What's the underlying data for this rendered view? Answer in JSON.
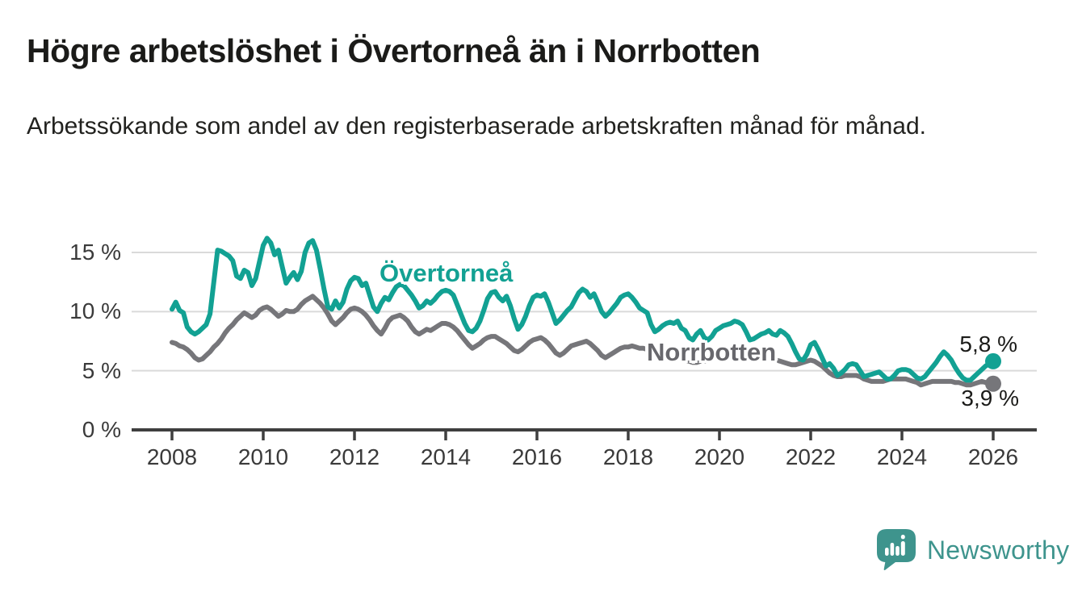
{
  "title": "Högre arbetslöshet i Övertorneå än i Norrbotten",
  "subtitle": "Arbetssökande som andel av den registerbaserade arbetskraften månad för månad.",
  "chart_data": {
    "type": "line",
    "x_start_year": 2008,
    "x_end_year": 2026,
    "points_per_year": 12,
    "x_tick_labels": [
      "2008",
      "2010",
      "2012",
      "2014",
      "2016",
      "2018",
      "2020",
      "2022",
      "2024",
      "2026"
    ],
    "y_ticks": [
      0,
      5,
      10,
      15
    ],
    "y_tick_labels": [
      "0 %",
      "5 %",
      "10 %",
      "15 %"
    ],
    "ylim": [
      0,
      16.5
    ],
    "grid": "horizontal",
    "legend_position": "inline-labels",
    "colors": {
      "grid": "#dadada",
      "axis": "#3f3f3f"
    },
    "series": [
      {
        "id": "overtornea",
        "name": "Övertorneå",
        "color": "#12a193",
        "end_label": "5,8 %",
        "end_value": 5.8,
        "values": [
          10.2,
          10.8,
          10.1,
          9.9,
          8.7,
          8.3,
          8.1,
          8.3,
          8.6,
          8.9,
          9.8,
          12.5,
          15.2,
          15.1,
          14.9,
          14.7,
          14.3,
          13.0,
          12.8,
          13.5,
          13.3,
          12.2,
          12.8,
          14.2,
          15.6,
          16.2,
          15.8,
          14.8,
          15.2,
          13.8,
          12.4,
          12.9,
          13.3,
          12.7,
          13.4,
          15.0,
          15.8,
          16.0,
          15.2,
          13.6,
          11.9,
          10.4,
          10.2,
          10.9,
          10.3,
          10.8,
          11.9,
          12.6,
          12.9,
          12.8,
          12.2,
          12.4,
          11.4,
          10.4,
          10.0,
          10.7,
          11.2,
          11.0,
          11.6,
          12.1,
          12.3,
          12.2,
          11.8,
          11.4,
          10.9,
          10.3,
          10.5,
          10.9,
          10.7,
          11.0,
          11.4,
          11.7,
          11.8,
          11.7,
          11.4,
          10.6,
          9.8,
          9.0,
          8.4,
          8.3,
          8.6,
          9.2,
          10.1,
          11.1,
          11.6,
          11.7,
          11.2,
          10.9,
          11.3,
          10.5,
          9.4,
          8.5,
          8.9,
          9.6,
          10.5,
          11.2,
          11.4,
          11.3,
          11.5,
          10.8,
          9.9,
          9.0,
          9.3,
          9.7,
          10.1,
          10.4,
          11.0,
          11.6,
          11.9,
          11.7,
          11.2,
          11.5,
          10.8,
          10.0,
          9.6,
          9.9,
          10.3,
          10.7,
          11.2,
          11.4,
          11.5,
          11.2,
          10.8,
          10.3,
          10.1,
          9.9,
          8.9,
          8.3,
          8.5,
          8.8,
          9.0,
          9.1,
          9.0,
          9.2,
          8.6,
          8.4,
          7.8,
          7.6,
          8.1,
          8.4,
          7.8,
          7.6,
          7.9,
          8.4,
          8.6,
          8.8,
          8.9,
          9.0,
          9.2,
          9.1,
          8.9,
          8.3,
          7.6,
          7.7,
          7.9,
          8.1,
          8.2,
          8.4,
          8.1,
          8.0,
          8.4,
          8.2,
          7.9,
          7.3,
          6.6,
          6.0,
          5.9,
          6.4,
          7.2,
          7.4,
          6.8,
          6.1,
          5.4,
          5.6,
          5.2,
          4.6,
          4.8,
          5.1,
          5.5,
          5.6,
          5.5,
          5.0,
          4.5,
          4.6,
          4.7,
          4.8,
          4.9,
          4.6,
          4.3,
          4.3,
          4.6,
          5.0,
          5.1,
          5.1,
          5.0,
          4.7,
          4.4,
          4.3,
          4.5,
          4.9,
          5.3,
          5.7,
          6.2,
          6.6,
          6.3,
          5.9,
          5.3,
          4.8,
          4.4,
          4.2,
          4.2,
          4.5,
          4.8,
          5.1,
          5.4,
          5.6,
          5.8
        ]
      },
      {
        "id": "norrbotten",
        "name": "Norrbotten",
        "color": "#76767a",
        "end_label": "3,9 %",
        "end_value": 3.9,
        "values": [
          7.4,
          7.3,
          7.1,
          7.0,
          6.8,
          6.5,
          6.1,
          5.9,
          6.0,
          6.3,
          6.6,
          7.0,
          7.3,
          7.7,
          8.2,
          8.6,
          8.9,
          9.3,
          9.6,
          9.9,
          9.7,
          9.5,
          9.7,
          10.1,
          10.3,
          10.4,
          10.2,
          9.9,
          9.6,
          9.8,
          10.1,
          10.0,
          10.0,
          10.2,
          10.6,
          10.9,
          11.1,
          11.3,
          11.0,
          10.7,
          10.3,
          9.8,
          9.2,
          8.9,
          9.2,
          9.5,
          9.9,
          10.2,
          10.3,
          10.2,
          10.0,
          9.7,
          9.3,
          8.8,
          8.4,
          8.1,
          8.6,
          9.2,
          9.5,
          9.6,
          9.7,
          9.5,
          9.2,
          8.7,
          8.3,
          8.1,
          8.3,
          8.5,
          8.4,
          8.6,
          8.8,
          9.0,
          9.0,
          8.9,
          8.7,
          8.4,
          8.0,
          7.6,
          7.2,
          6.9,
          7.1,
          7.3,
          7.6,
          7.8,
          7.9,
          7.9,
          7.7,
          7.5,
          7.3,
          7.0,
          6.7,
          6.6,
          6.8,
          7.1,
          7.4,
          7.6,
          7.7,
          7.8,
          7.6,
          7.3,
          6.9,
          6.5,
          6.3,
          6.5,
          6.8,
          7.1,
          7.2,
          7.3,
          7.4,
          7.5,
          7.3,
          7.0,
          6.7,
          6.3,
          6.1,
          6.3,
          6.5,
          6.7,
          6.9,
          7.0,
          7.0,
          7.1,
          7.0,
          6.9,
          6.9,
          6.8,
          6.6,
          6.4,
          6.2,
          6.1,
          6.2,
          6.3,
          6.3,
          6.2,
          6.0,
          5.9,
          5.8,
          5.7,
          5.7,
          5.8,
          5.8,
          5.9,
          6.0,
          6.2,
          6.3,
          6.4,
          6.6,
          6.9,
          7.0,
          6.9,
          6.8,
          6.7,
          6.6,
          6.5,
          6.4,
          6.4,
          6.3,
          6.2,
          6.0,
          5.9,
          5.8,
          5.7,
          5.6,
          5.5,
          5.5,
          5.6,
          5.7,
          5.8,
          5.9,
          5.8,
          5.6,
          5.4,
          5.1,
          4.8,
          4.6,
          4.5,
          4.5,
          4.6,
          4.6,
          4.6,
          4.6,
          4.5,
          4.3,
          4.2,
          4.1,
          4.1,
          4.1,
          4.1,
          4.2,
          4.3,
          4.3,
          4.3,
          4.3,
          4.3,
          4.2,
          4.1,
          4.0,
          3.8,
          3.9,
          4.0,
          4.1,
          4.1,
          4.1,
          4.1,
          4.1,
          4.1,
          4.0,
          4.0,
          3.9,
          3.8,
          3.8,
          3.9,
          4.0,
          4.1,
          4.0,
          3.9,
          3.9
        ]
      }
    ]
  },
  "footer": {
    "brand": "Newsworthy",
    "logo_color": "#3e948d"
  }
}
